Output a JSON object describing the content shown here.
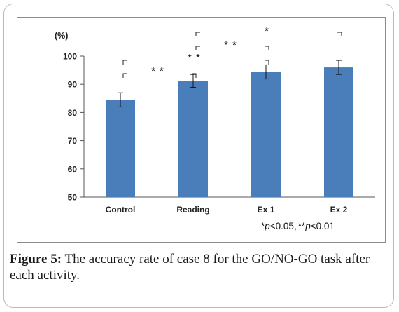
{
  "chart_data": {
    "type": "bar",
    "categories": [
      "Control",
      "Reading",
      "Ex 1",
      "Ex 2"
    ],
    "values": [
      84.5,
      91.2,
      94.4,
      96.0
    ],
    "error": [
      2.5,
      2.3,
      2.5,
      2.5
    ],
    "ylim": [
      50,
      100
    ],
    "yticks": [
      "50",
      "60",
      "70",
      "80",
      "90",
      "100"
    ],
    "yunit": "(%)",
    "bar_color": "#4a7ebb",
    "significance": [
      {
        "label": "**",
        "from": "Control",
        "to": "Reading"
      },
      {
        "label": "**",
        "from": "Control",
        "to": "Ex 1"
      },
      {
        "label": "**",
        "from": "Reading",
        "to": "Ex 1"
      },
      {
        "label": "*",
        "from": "Reading",
        "to": "Ex 2"
      }
    ],
    "legend_note": {
      "single_star": "*",
      "p_symbol": "p",
      "single_text": "<0.05,",
      "double_star": "**",
      "double_text": "<0.01"
    }
  },
  "caption": {
    "label": "Figure 5:",
    "text": " The accuracy rate of case 8 for the GO/NO-GO task after each activity."
  }
}
